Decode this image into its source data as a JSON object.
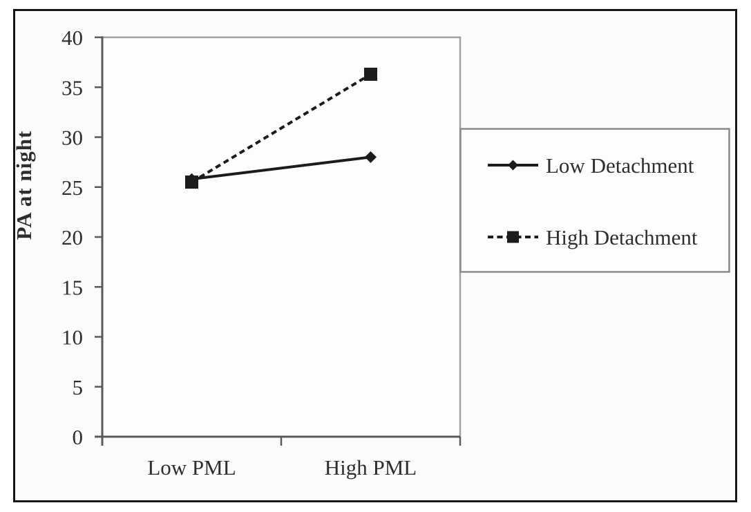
{
  "style": {
    "canvas_fill": "#fbfbfb",
    "frame_color": "#161616",
    "plot_fill": "#fdfdfd",
    "plot_border_color": "#a1a1a1",
    "axis_color": "#5a5a5a",
    "legend_border_color": "#8a8a8a",
    "series_color": "#1c1c1c",
    "text_color": "#2e2e2e"
  },
  "chart_data": {
    "type": "line",
    "title": "",
    "xlabel": "",
    "ylabel": "PA at night",
    "categories": [
      "Low PML",
      "High PML"
    ],
    "series": [
      {
        "name": "Low Detachment",
        "values": [
          25.8,
          28.0
        ],
        "marker": "diamond",
        "line_style": "solid",
        "color": "#1c1c1c"
      },
      {
        "name": "High Detachment",
        "values": [
          25.5,
          36.3
        ],
        "marker": "square",
        "line_style": "dashed",
        "color": "#1c1c1c"
      }
    ],
    "ylim": [
      0,
      40
    ],
    "yticks": [
      0,
      5,
      10,
      15,
      20,
      25,
      30,
      35,
      40
    ],
    "grid": false,
    "legend_position": "right"
  }
}
